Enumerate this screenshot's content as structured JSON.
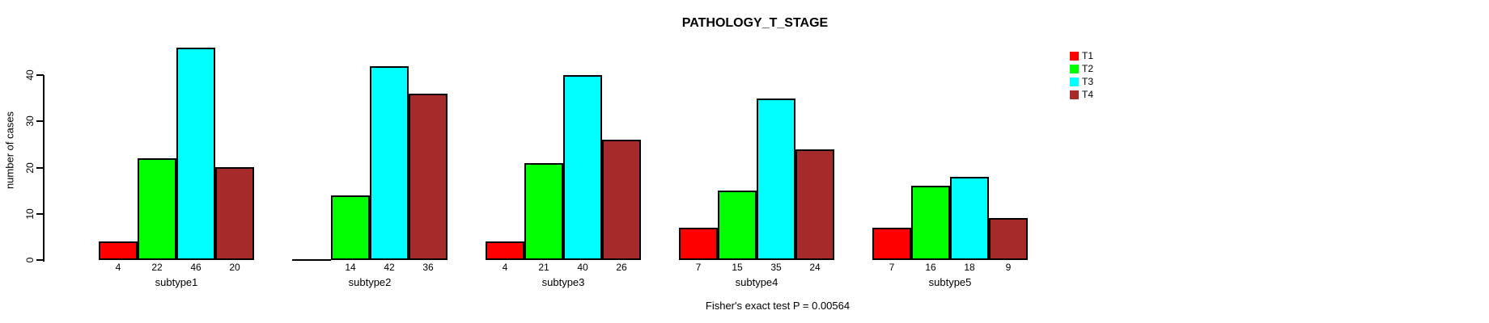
{
  "title": "PATHOLOGY_T_STAGE",
  "annotation": "Fisher's exact test P = 0.00564",
  "chart_data": {
    "type": "bar",
    "title": "PATHOLOGY_T_STAGE",
    "ylabel": "number of cases",
    "xlabel": "",
    "categories": [
      "subtype1",
      "subtype2",
      "subtype3",
      "subtype4",
      "subtype5"
    ],
    "series": [
      {
        "name": "T1",
        "color": "#FF0000",
        "values": [
          4,
          0,
          4,
          7,
          7
        ]
      },
      {
        "name": "T2",
        "color": "#00FF00",
        "values": [
          22,
          14,
          21,
          15,
          16
        ]
      },
      {
        "name": "T3",
        "color": "#00FFFF",
        "values": [
          46,
          42,
          40,
          35,
          18
        ]
      },
      {
        "name": "T4",
        "color": "#A52A2A",
        "values": [
          20,
          36,
          26,
          24,
          9
        ]
      }
    ],
    "groups_values_labeled": {
      "subtype1": [
        4,
        22,
        46,
        20
      ],
      "subtype2": [
        0,
        14,
        42,
        36
      ],
      "subtype3": [
        4,
        21,
        40,
        26
      ],
      "subtype4": [
        7,
        15,
        35,
        24
      ],
      "subtype5": [
        7,
        16,
        18,
        9
      ]
    },
    "yticks": [
      0,
      10,
      20,
      30,
      40
    ],
    "ylim": [
      0,
      46
    ],
    "grid": false,
    "legend_position": "right",
    "legend_entries": [
      "T1",
      "T2",
      "T3",
      "T4"
    ],
    "annotation": "Fisher's exact test P = 0.00564",
    "bar_border_color": "#000000",
    "axis_color": "#000000",
    "background_color": "#FFFFFF",
    "zero_bars_drawn_as_baseline_segment": true,
    "zero_bars_have_no_value_label": true
  }
}
